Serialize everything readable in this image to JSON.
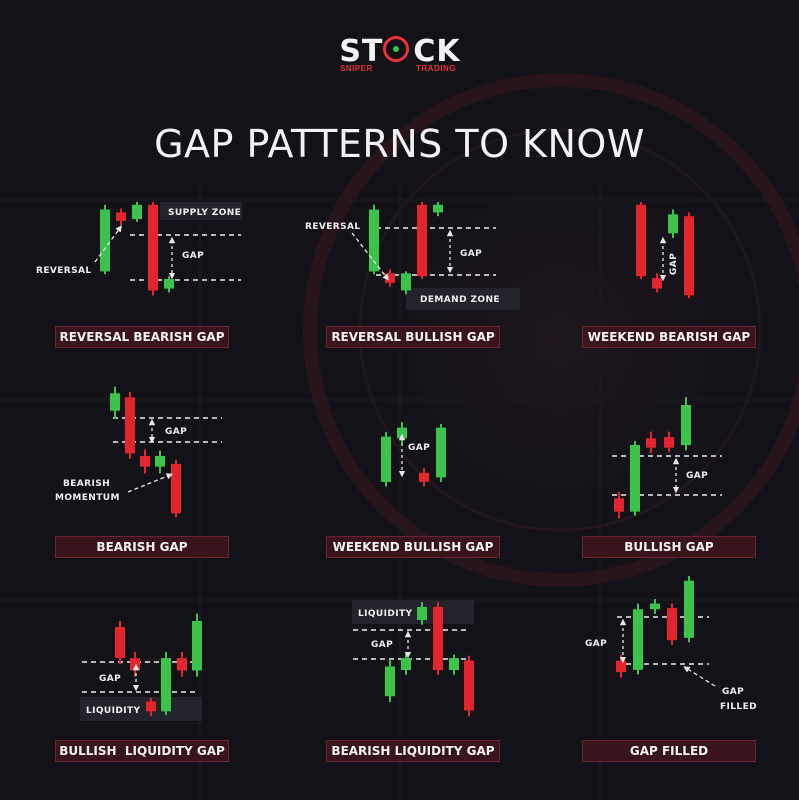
{
  "brand": {
    "name_left": "ST",
    "name_right": "CK",
    "tagline_left": "SNIPER",
    "tagline_right": "TRADING",
    "accent": "#e8323a",
    "green": "#38c24a"
  },
  "title": "GAP PATTERNS TO KNOW",
  "colors": {
    "bull": "#3cc34b",
    "bear": "#e3262e",
    "caption_bg": "#3a141b",
    "background": "#121218"
  },
  "patterns": [
    {
      "caption": "REVERSAL BEARISH GAP",
      "labels": [
        "SUPPLY ZONE",
        "GAP",
        "REVERSAL"
      ],
      "candles": [
        {
          "dir": "bull",
          "open": 30,
          "close": 95,
          "high": 100,
          "low": 27
        },
        {
          "dir": "bear",
          "open": 92,
          "close": 83,
          "high": 96,
          "low": 78
        },
        {
          "dir": "bull",
          "open": 85,
          "close": 100,
          "high": 103,
          "low": 82
        },
        {
          "dir": "bear",
          "open": 100,
          "close": 10,
          "high": 103,
          "low": 5
        },
        {
          "dir": "bull",
          "open": 12,
          "close": 22,
          "high": 25,
          "low": 8
        }
      ]
    },
    {
      "caption": "REVERSAL BULLISH GAP",
      "labels": [
        "REVERSAL",
        "GAP",
        "DEMAND ZONE"
      ],
      "candles": [
        {
          "dir": "bull",
          "open": 30,
          "close": 95,
          "high": 100,
          "low": 27
        },
        {
          "dir": "bear",
          "open": 28,
          "close": 18,
          "high": 32,
          "low": 14
        },
        {
          "dir": "bull",
          "open": 10,
          "close": 28,
          "high": 30,
          "low": 6
        },
        {
          "dir": "bear",
          "open": 100,
          "close": 25,
          "high": 103,
          "low": 22
        },
        {
          "dir": "bull",
          "open": 92,
          "close": 100,
          "high": 103,
          "low": 88
        }
      ]
    },
    {
      "caption": "WEEKEND BEARISH GAP",
      "labels": [
        "GAP"
      ],
      "candles": [
        {
          "dir": "bear",
          "open": 100,
          "close": 25,
          "high": 103,
          "low": 22
        },
        {
          "dir": "bear",
          "open": 23,
          "close": 12,
          "high": 28,
          "low": 8
        },
        {
          "dir": "bull",
          "open": 70,
          "close": 90,
          "high": 95,
          "low": 65
        },
        {
          "dir": "bear",
          "open": 88,
          "close": 5,
          "high": 92,
          "low": 2
        }
      ]
    },
    {
      "caption": "BEARISH GAP",
      "labels": [
        "GAP",
        "BEARISH",
        "MOMENTUM"
      ],
      "candles": [
        {
          "dir": "bull",
          "open": 82,
          "close": 95,
          "high": 100,
          "low": 76
        },
        {
          "dir": "bear",
          "open": 92,
          "close": 50,
          "high": 96,
          "low": 46
        },
        {
          "dir": "bear",
          "open": 48,
          "close": 40,
          "high": 53,
          "low": 35
        },
        {
          "dir": "bull",
          "open": 40,
          "close": 48,
          "high": 52,
          "low": 35
        },
        {
          "dir": "bear",
          "open": 42,
          "close": 5,
          "high": 45,
          "low": 2
        }
      ]
    },
    {
      "caption": "WEEKEND BULLISH GAP",
      "labels": [
        "GAP"
      ],
      "candles": [
        {
          "dir": "bull",
          "open": 20,
          "close": 70,
          "high": 75,
          "low": 15
        },
        {
          "dir": "bull",
          "open": 68,
          "close": 80,
          "high": 86,
          "low": 63
        },
        {
          "dir": "bear",
          "open": 30,
          "close": 20,
          "high": 35,
          "low": 15
        },
        {
          "dir": "bull",
          "open": 25,
          "close": 80,
          "high": 84,
          "low": 20
        }
      ]
    },
    {
      "caption": "BULLISH GAP",
      "labels": [
        "GAP"
      ],
      "candles": [
        {
          "dir": "bear",
          "open": 20,
          "close": 10,
          "high": 25,
          "low": 5
        },
        {
          "dir": "bull",
          "open": 10,
          "close": 60,
          "high": 63,
          "low": 7
        },
        {
          "dir": "bear",
          "open": 65,
          "close": 58,
          "high": 70,
          "low": 54
        },
        {
          "dir": "bear",
          "open": 66,
          "close": 58,
          "high": 70,
          "low": 55
        },
        {
          "dir": "bull",
          "open": 60,
          "close": 90,
          "high": 96,
          "low": 56
        }
      ]
    },
    {
      "caption": "BULLISH  LIQUIDITY GAP",
      "labels": [
        "GAP",
        "LIQUIDITY"
      ],
      "candles": [
        {
          "dir": "bear",
          "open": 75,
          "close": 50,
          "high": 80,
          "low": 45
        },
        {
          "dir": "bear",
          "open": 50,
          "close": 40,
          "high": 55,
          "low": 35
        },
        {
          "dir": "bear",
          "open": 15,
          "close": 7,
          "high": 18,
          "low": 3
        },
        {
          "dir": "bull",
          "open": 7,
          "close": 50,
          "high": 55,
          "low": 4
        },
        {
          "dir": "bear",
          "open": 50,
          "close": 40,
          "high": 55,
          "low": 35
        },
        {
          "dir": "bull",
          "open": 40,
          "close": 80,
          "high": 86,
          "low": 35
        }
      ]
    },
    {
      "caption": "BEARISH LIQUIDITY GAP",
      "labels": [
        "LIQUIDITY",
        "GAP"
      ],
      "candles": [
        {
          "dir": "bull",
          "open": 20,
          "close": 45,
          "high": 50,
          "low": 15
        },
        {
          "dir": "bull",
          "open": 42,
          "close": 52,
          "high": 56,
          "low": 38
        },
        {
          "dir": "bull",
          "open": 84,
          "close": 95,
          "high": 99,
          "low": 80
        },
        {
          "dir": "bear",
          "open": 95,
          "close": 42,
          "high": 99,
          "low": 38
        },
        {
          "dir": "bull",
          "open": 42,
          "close": 52,
          "high": 55,
          "low": 38
        },
        {
          "dir": "bear",
          "open": 50,
          "close": 8,
          "high": 54,
          "low": 3
        }
      ]
    },
    {
      "caption": "GAP FILLED",
      "labels": [
        "GAP",
        "GAP",
        "FILLED"
      ],
      "candles": [
        {
          "dir": "bear",
          "open": 30,
          "close": 20,
          "high": 35,
          "low": 15
        },
        {
          "dir": "bull",
          "open": 22,
          "close": 75,
          "high": 80,
          "low": 18
        },
        {
          "dir": "bull",
          "open": 75,
          "close": 80,
          "high": 84,
          "low": 71
        },
        {
          "dir": "bear",
          "open": 76,
          "close": 48,
          "high": 80,
          "low": 44
        },
        {
          "dir": "bull",
          "open": 50,
          "close": 100,
          "high": 104,
          "low": 46
        }
      ]
    }
  ]
}
